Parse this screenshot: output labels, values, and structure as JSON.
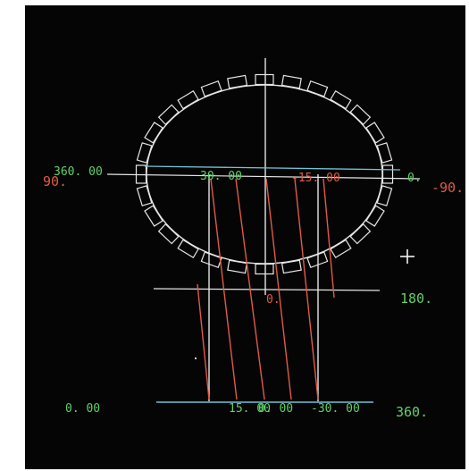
{
  "colors": {
    "background": "#050505",
    "white_line": "#e6e6e6",
    "cyan_line": "#6fc3d6",
    "red_line": "#e05a46",
    "green_text": "#63d06a",
    "red_text": "#e05a46"
  },
  "labels": {
    "left_top_value": "360. 00",
    "left_angle": "90.",
    "top_mid_left": "30. 00",
    "top_mid_right": "-15. 00",
    "right_zero": "0.",
    "right_angle": "-90.",
    "center_zero": "0.",
    "right_180": "180.",
    "bottom_left": "0. 00",
    "bottom_mid_a": "15. 00",
    "bottom_mid_b": "0. 00",
    "bottom_mid_c": "-30. 00",
    "bottom_right": "360."
  },
  "marker_icon": "crosshair-plus-icon"
}
